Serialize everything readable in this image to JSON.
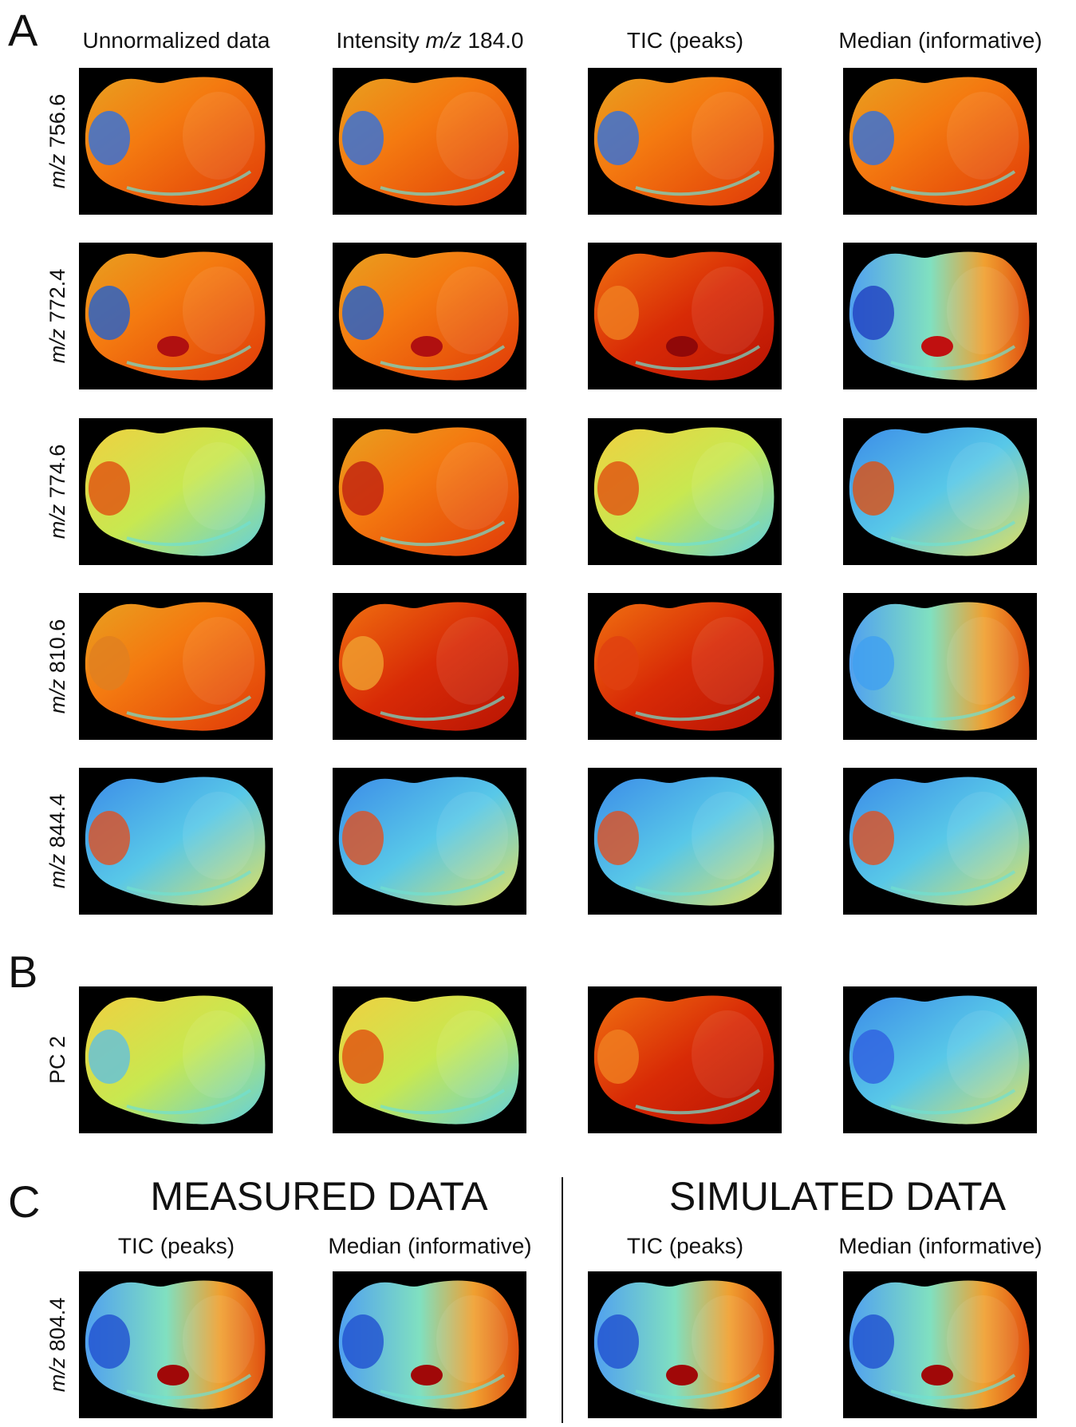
{
  "panel_a": {
    "letter": "A",
    "column_headers": [
      {
        "text": "Unnormalized data"
      },
      {
        "text": "Intensity ",
        "italic": "m/z",
        "rest": " 184.0"
      },
      {
        "text": "TIC (peaks)"
      },
      {
        "text": "Median (informative)"
      }
    ],
    "row_labels": [
      {
        "italic": "m/z",
        "rest": " 756.6"
      },
      {
        "italic": "m/z",
        "rest": " 772.4"
      },
      {
        "italic": "m/z",
        "rest": " 774.6"
      },
      {
        "italic": "m/z",
        "rest": " 810.6"
      },
      {
        "italic": "m/z",
        "rest": " 844.4"
      }
    ]
  },
  "panel_b": {
    "letter": "B",
    "row_label": "PC 2"
  },
  "panel_c": {
    "letter": "C",
    "left_title": "MEASURED DATA",
    "right_title": "SIMULATED DATA",
    "column_headers": [
      "TIC (peaks)",
      "Median (informative)",
      "TIC (peaks)",
      "Median (informative)"
    ],
    "row_label": {
      "italic": "m/z",
      "rest": " 804.4"
    }
  }
}
